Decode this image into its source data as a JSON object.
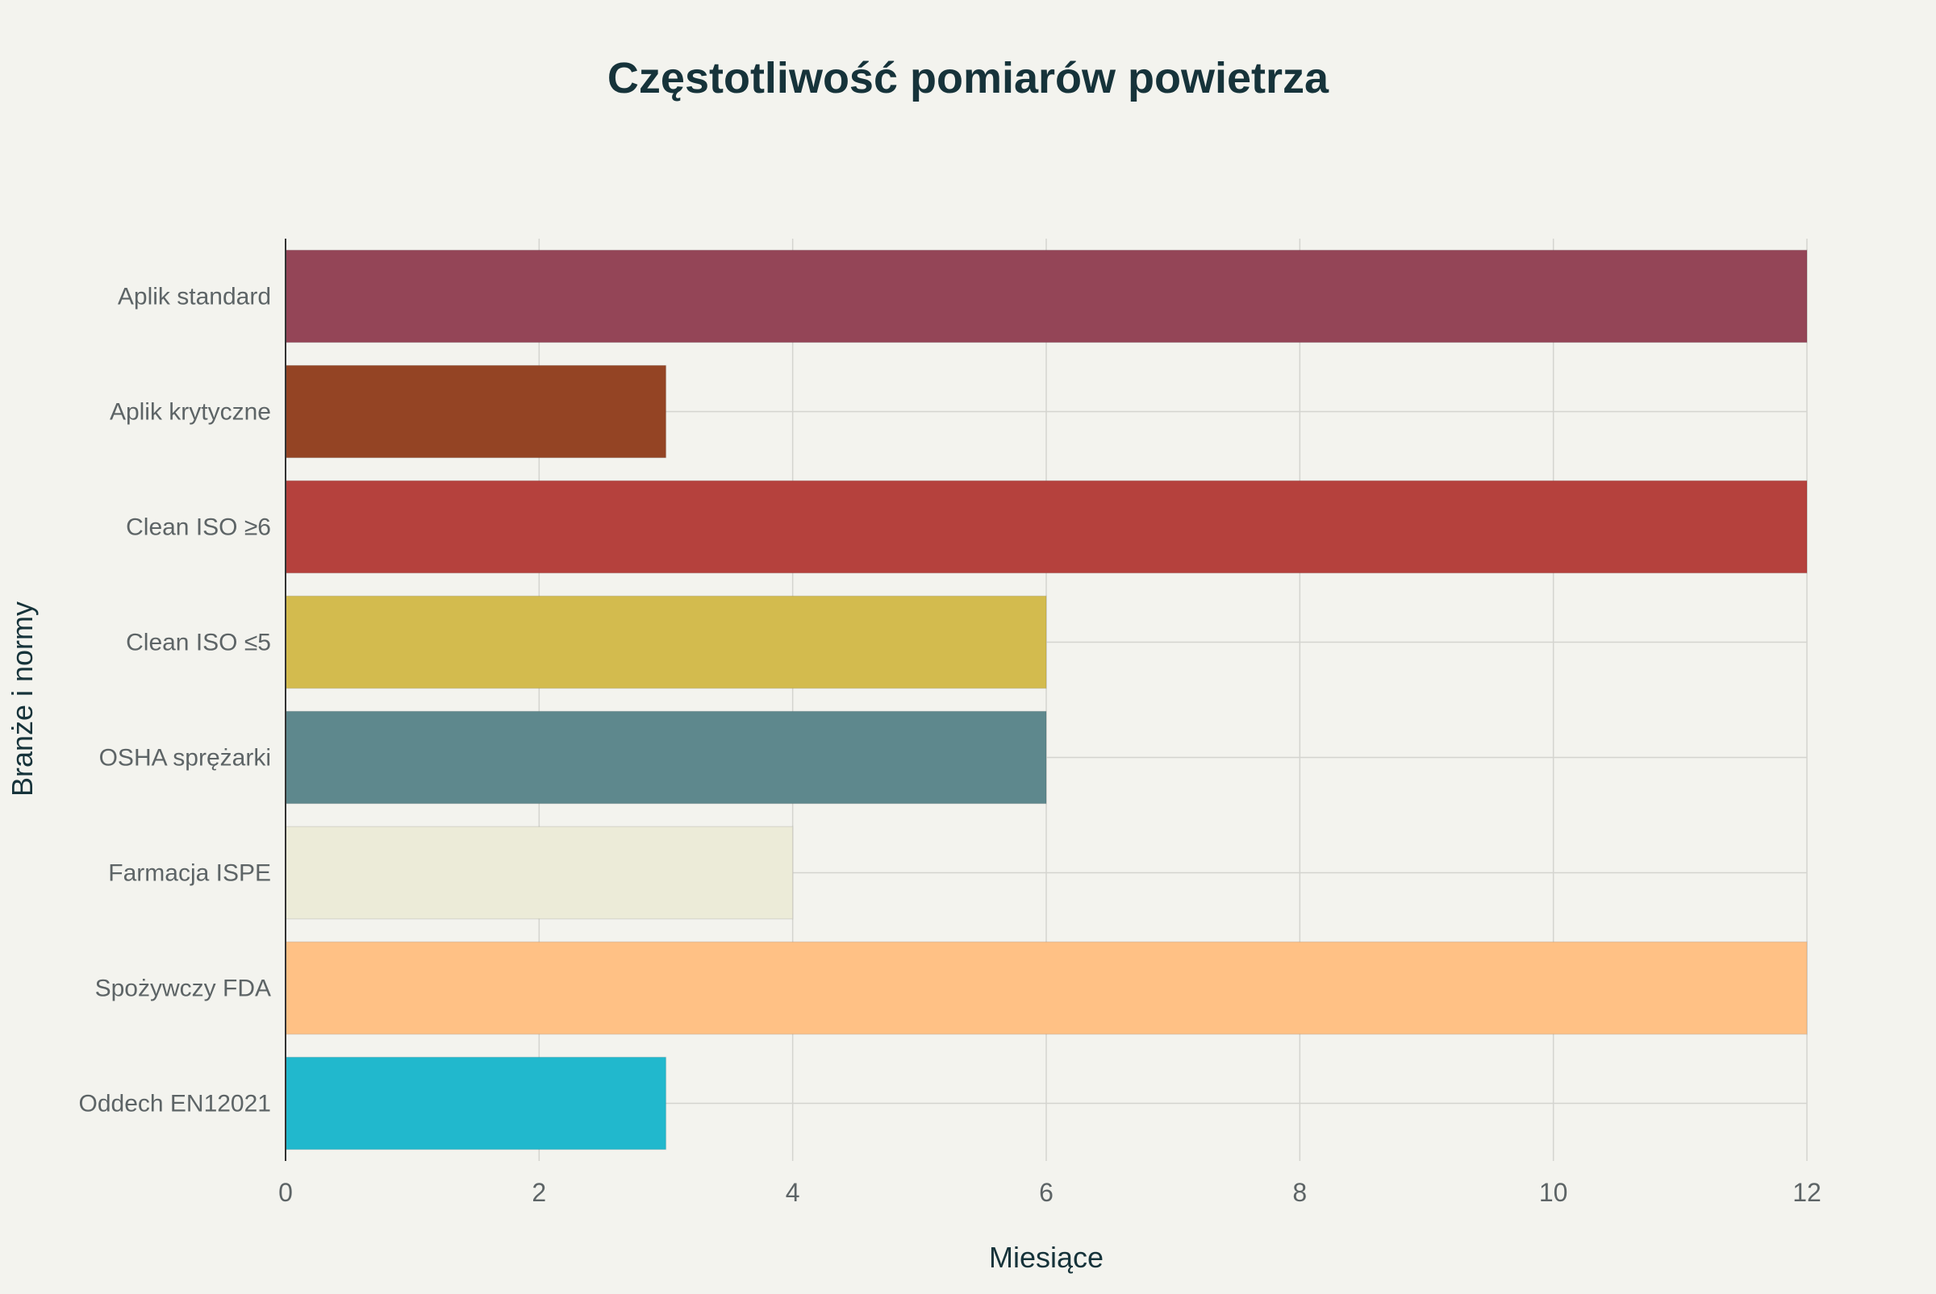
{
  "chart_data": {
    "type": "bar",
    "orientation": "horizontal",
    "title": "Częstotliwość pomiarów powietrza",
    "xlabel": "Miesiące",
    "ylabel": "Branże i normy",
    "xlim": [
      0,
      12
    ],
    "x_ticks": [
      "0",
      "2",
      "4",
      "6",
      "8",
      "10",
      "12"
    ],
    "x_tick_values": [
      0,
      2,
      4,
      6,
      8,
      10,
      12
    ],
    "grid": true,
    "legend": "none",
    "categories": [
      "Aplik standard",
      "Aplik krytyczne",
      "Clean ISO ≥6",
      "Clean ISO ≤5",
      "OSHA sprężarki",
      "Farmacja ISPE",
      "Spożywczy FDA",
      "Oddech EN12021"
    ],
    "values": [
      12,
      3,
      12,
      6,
      6,
      4,
      12,
      3
    ],
    "colors": [
      "#944557",
      "#944424",
      "#b5413d",
      "#d3bb4e",
      "#5e888d",
      "#ecebd8",
      "#ffc185",
      "#21b8cd"
    ]
  }
}
